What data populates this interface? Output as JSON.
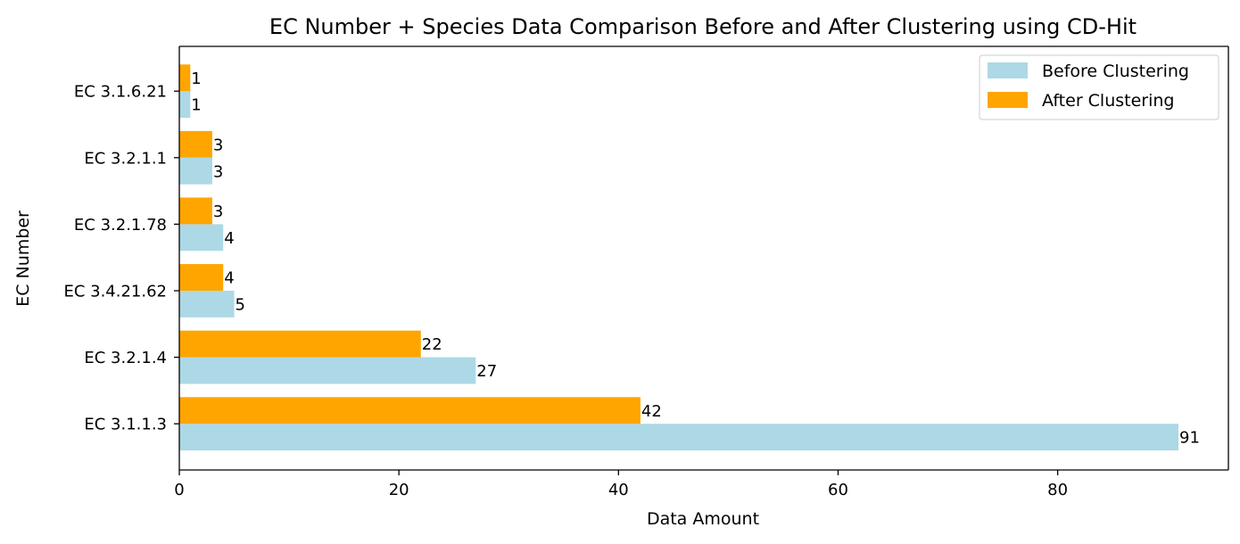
{
  "chart_data": {
    "type": "bar",
    "orientation": "horizontal",
    "title": "EC Number + Species Data Comparison Before and After Clustering using CD-Hit",
    "xlabel": "Data Amount",
    "ylabel": "EC Number",
    "categories": [
      "EC 3.1.1.3",
      "EC 3.2.1.4",
      "EC 3.4.21.62",
      "EC 3.2.1.78",
      "EC 3.2.1.1",
      "EC 3.1.6.21"
    ],
    "series": [
      {
        "name": "Before Clustering",
        "color": "#add8e6",
        "values": [
          91,
          27,
          5,
          4,
          3,
          1
        ]
      },
      {
        "name": "After Clustering",
        "color": "#ffa500",
        "values": [
          42,
          22,
          4,
          3,
          3,
          1
        ]
      }
    ],
    "xlim": [
      0,
      95.55
    ],
    "xticks": [
      0,
      20,
      40,
      60,
      80
    ],
    "xtick_labels": [
      "0",
      "20",
      "40",
      "60",
      "80"
    ],
    "grid": false,
    "legend": "top-right"
  }
}
